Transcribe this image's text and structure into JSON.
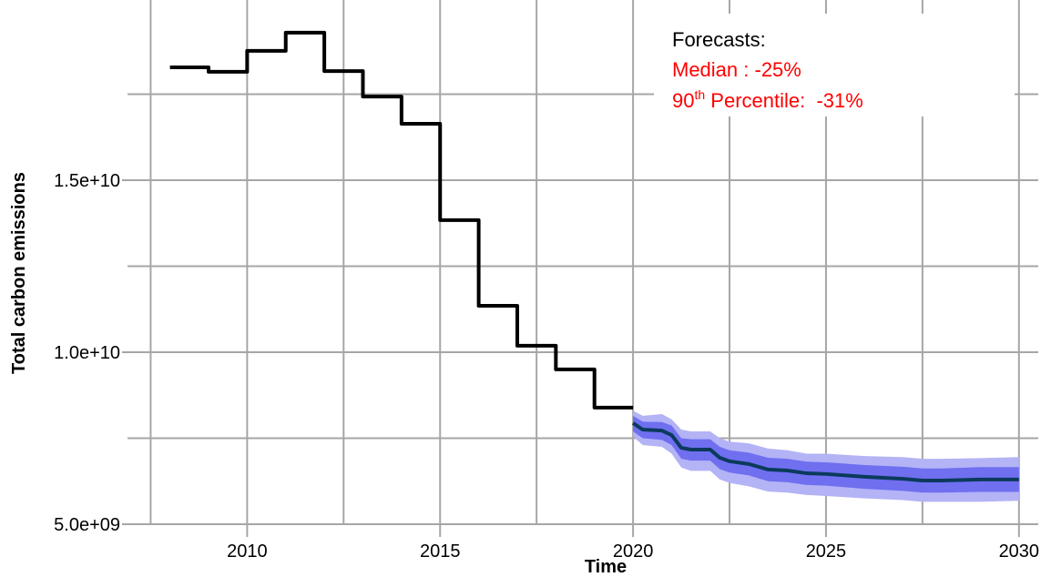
{
  "chart_data": {
    "type": "line",
    "x_label": "Time",
    "y_label": "Total carbon emissions",
    "xlim": [
      2006.9,
      2030.5
    ],
    "xticks": [
      2010,
      2015,
      2020,
      2025,
      2030
    ],
    "x_minor_ticks": [
      2007.5,
      2012.5,
      2017.5,
      2022.5,
      2027.5
    ],
    "ylim": [
      5000000000,
      20000000000
    ],
    "yticks": [
      {
        "value": 5000000000,
        "label": "5.0e+09"
      },
      {
        "value": 10000000000,
        "label": "1.0e+10"
      },
      {
        "value": 15000000000,
        "label": "1.5e+10"
      }
    ],
    "y_minor_ticks": [
      7500000000,
      12500000000,
      17500000000
    ],
    "grid": true,
    "series": [
      {
        "color": "#000000",
        "step": "post",
        "x": [
          2008,
          2009,
          2010,
          2011,
          2012,
          2013,
          2014,
          2015,
          2016,
          2017,
          2018,
          2019,
          2020
        ],
        "values": [
          18280000000.0,
          18150000000.0,
          18760000000.0,
          19290000000.0,
          18170000000.0,
          17430000000.0,
          16640000000.0,
          13840000000.0,
          11350000000.0,
          10190000000.0,
          9500000000.0,
          8390000000.0,
          8390000000.0
        ]
      },
      {
        "color": "#0b3a5c",
        "x": [
          2020,
          2020.25,
          2020.75,
          2021,
          2021.25,
          2021.5,
          2022,
          2022.25,
          2022.5,
          2023,
          2023.5,
          2024,
          2024.5,
          2025,
          2026,
          2027,
          2027.5,
          2028,
          2029,
          2030
        ],
        "values": [
          7940000000.0,
          7750000000.0,
          7720000000.0,
          7590000000.0,
          7220000000.0,
          7170000000.0,
          7170000000.0,
          6930000000.0,
          6830000000.0,
          6750000000.0,
          6590000000.0,
          6560000000.0,
          6480000000.0,
          6460000000.0,
          6380000000.0,
          6320000000.0,
          6270000000.0,
          6270000000.0,
          6300000000.0,
          6300000000.0
        ],
        "bands": [
          {
            "color": "#b3b3f6",
            "lower": [
              7550000000.0,
              7300000000.0,
              7250000000.0,
              7050000000.0,
              6650000000.0,
              6550000000.0,
              6550000000.0,
              6300000000.0,
              6200000000.0,
              6100000000.0,
              5950000000.0,
              5920000000.0,
              5850000000.0,
              5820000000.0,
              5750000000.0,
              5700000000.0,
              5650000000.0,
              5650000000.0,
              5650000000.0,
              5680000000.0
            ],
            "upper": [
              8300000000.0,
              8150000000.0,
              8200000000.0,
              8050000000.0,
              7750000000.0,
              7700000000.0,
              7700000000.0,
              7500000000.0,
              7400000000.0,
              7350000000.0,
              7200000000.0,
              7150000000.0,
              7050000000.0,
              7050000000.0,
              6980000000.0,
              6950000000.0,
              6900000000.0,
              6900000000.0,
              6920000000.0,
              6950000000.0
            ]
          },
          {
            "color": "#6f6ff0",
            "lower": [
              7700000000.0,
              7500000000.0,
              7450000000.0,
              7300000000.0,
              6900000000.0,
              6850000000.0,
              6850000000.0,
              6600000000.0,
              6500000000.0,
              6420000000.0,
              6250000000.0,
              6220000000.0,
              6140000000.0,
              6120000000.0,
              6030000000.0,
              5970000000.0,
              5920000000.0,
              5920000000.0,
              5940000000.0,
              5940000000.0
            ],
            "upper": [
              8150000000.0,
              7980000000.0,
              7970000000.0,
              7870000000.0,
              7500000000.0,
              7470000000.0,
              7470000000.0,
              7250000000.0,
              7150000000.0,
              7080000000.0,
              6930000000.0,
              6900000000.0,
              6820000000.0,
              6800000000.0,
              6720000000.0,
              6670000000.0,
              6620000000.0,
              6620000000.0,
              6660000000.0,
              6660000000.0
            ]
          }
        ]
      }
    ],
    "annotation": {
      "heading": "Forecasts:",
      "median": "Median : -25%",
      "percentile": {
        "number": "90",
        "suffix": "th",
        "text": " Percentile:  -31%"
      },
      "color": "#ff0000"
    }
  }
}
